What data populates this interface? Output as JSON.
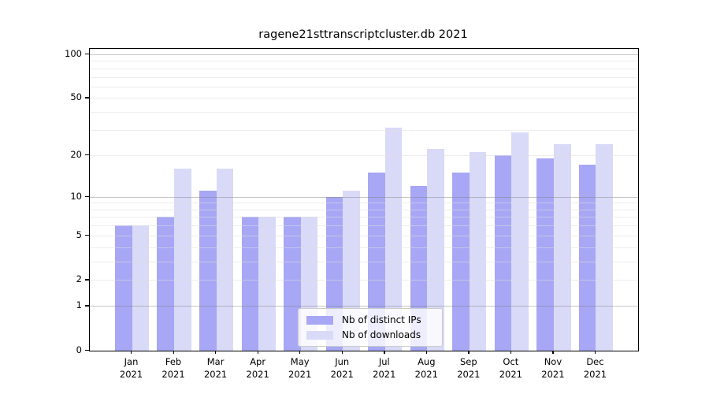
{
  "title": "ragene21sttranscriptcluster.db 2021",
  "chart_data": {
    "type": "bar",
    "title": "ragene21sttranscriptcluster.db 2021",
    "categories": [
      "Jan",
      "Feb",
      "Mar",
      "Apr",
      "May",
      "Jun",
      "Jul",
      "Aug",
      "Sep",
      "Oct",
      "Nov",
      "Dec"
    ],
    "year": "2021",
    "series": [
      {
        "name": "Nb of distinct IPs",
        "color": "#a7a7f5",
        "values": [
          6,
          7,
          11,
          7,
          7,
          10,
          15,
          12,
          15,
          20,
          19,
          17
        ]
      },
      {
        "name": "Nb of downloads",
        "color": "#d9d9f8",
        "values": [
          6,
          16,
          16,
          7,
          7,
          11,
          31,
          22,
          21,
          29,
          24,
          24
        ]
      }
    ],
    "yscale": "log1p",
    "ylim": [
      0,
      100
    ],
    "ytick_labels": [
      "100",
      "50",
      "20",
      "10",
      "5",
      "2",
      "1",
      "0"
    ],
    "ytick_values": [
      100,
      50,
      20,
      10,
      5,
      2,
      1,
      0
    ],
    "grid_minor_values": [
      2,
      3,
      4,
      5,
      6,
      7,
      8,
      9,
      20,
      30,
      40,
      50,
      60,
      70,
      80,
      90
    ],
    "grid_major_values": [
      1,
      10,
      100
    ],
    "grid": "on",
    "legend_position": "bottom-center",
    "xlabel": "",
    "ylabel": ""
  }
}
